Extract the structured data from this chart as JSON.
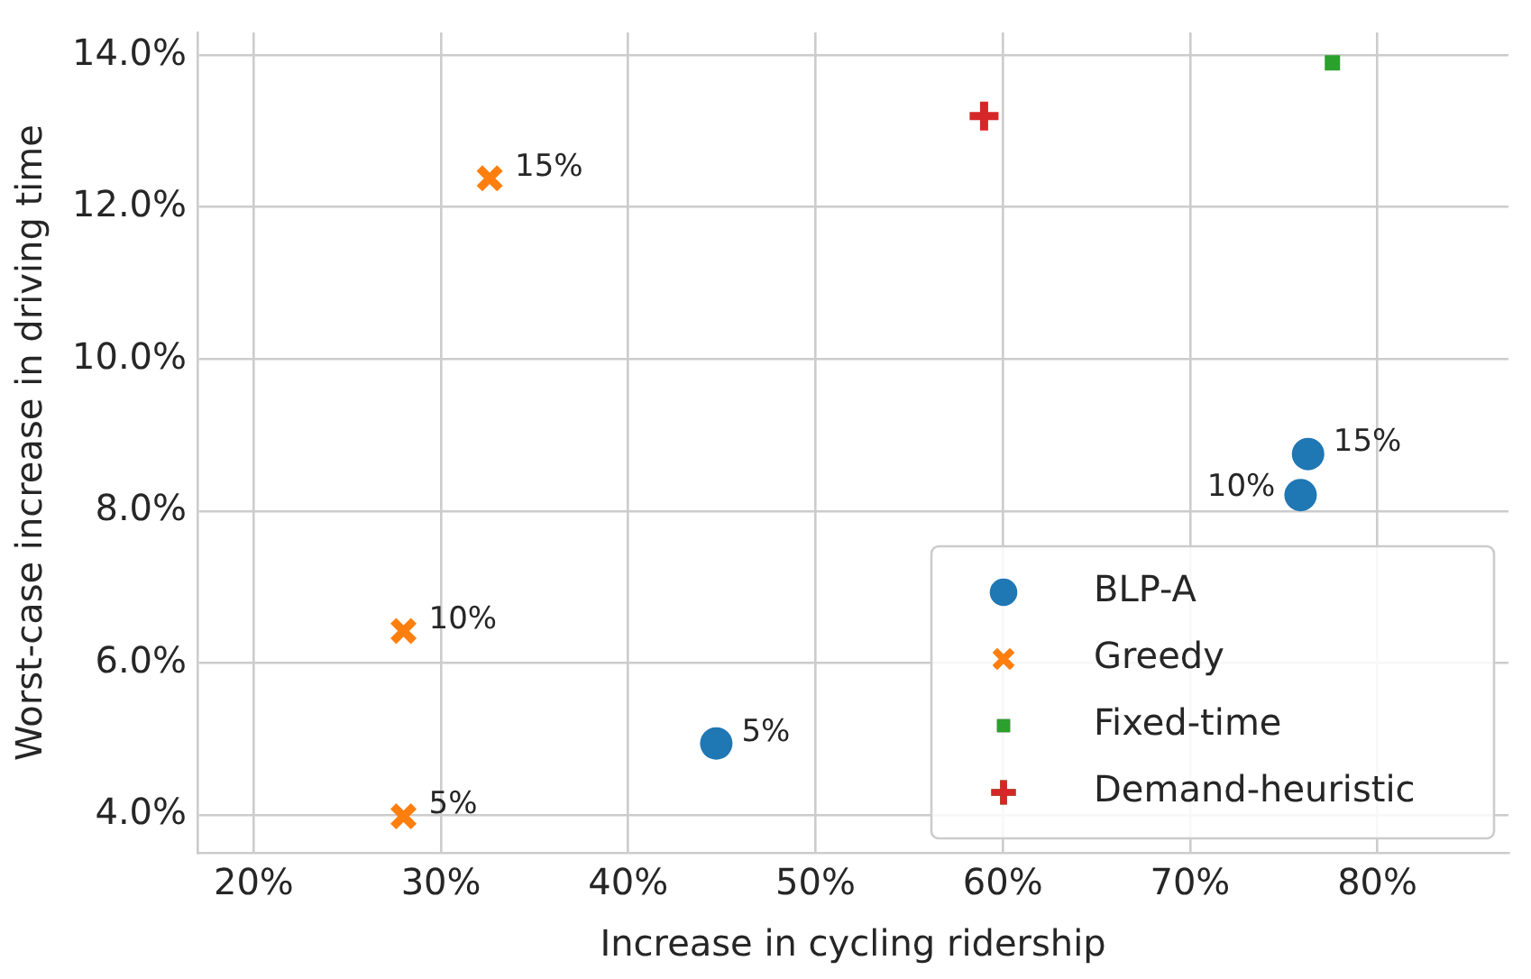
{
  "chart_data": {
    "type": "scatter",
    "xlabel": "Increase in cycling ridership",
    "ylabel": "Worst-case increase in driving time",
    "xlim": [
      17,
      87
    ],
    "ylim": [
      3.5,
      14.3
    ],
    "xticks": [
      {
        "value": 20,
        "label": "20%"
      },
      {
        "value": 30,
        "label": "30%"
      },
      {
        "value": 40,
        "label": "40%"
      },
      {
        "value": 50,
        "label": "50%"
      },
      {
        "value": 60,
        "label": "60%"
      },
      {
        "value": 70,
        "label": "70%"
      },
      {
        "value": 80,
        "label": "80%"
      }
    ],
    "yticks": [
      {
        "value": 4,
        "label": "4.0%"
      },
      {
        "value": 6,
        "label": "6.0%"
      },
      {
        "value": 8,
        "label": "8.0%"
      },
      {
        "value": 10,
        "label": "10.0%"
      },
      {
        "value": 12,
        "label": "12.0%"
      },
      {
        "value": 14,
        "label": "14.0%"
      }
    ],
    "grid": true,
    "legend": "bottom right",
    "series": [
      {
        "name": "BLP-A",
        "color": "#1f77b4",
        "marker": "circle",
        "x": [
          44.7,
          75.9,
          76.3
        ],
        "values": [
          4.94,
          8.21,
          8.75
        ]
      },
      {
        "name": "Greedy",
        "color": "#ff7f0e",
        "marker": "cross",
        "x": [
          28.0,
          28.0,
          32.6
        ],
        "values": [
          3.98,
          6.42,
          12.38
        ]
      },
      {
        "name": "Fixed-time",
        "color": "#2ca02c",
        "marker": "square",
        "x": [
          77.6
        ],
        "values": [
          13.9
        ]
      },
      {
        "name": "Demand-heuristic",
        "color": "#d62728",
        "marker": "plus",
        "x": [
          59.0
        ],
        "values": [
          13.2
        ]
      }
    ],
    "annotations": [
      {
        "text": "5%",
        "x": 44.7,
        "y": 4.94
      },
      {
        "text": "10%",
        "x": 75.9,
        "y": 8.21
      },
      {
        "text": "15%",
        "x": 76.3,
        "y": 8.75
      },
      {
        "text": "5%",
        "x": 28.0,
        "y": 3.98
      },
      {
        "text": "10%",
        "x": 28.0,
        "y": 6.42
      },
      {
        "text": "15%",
        "x": 32.6,
        "y": 12.38
      }
    ]
  }
}
